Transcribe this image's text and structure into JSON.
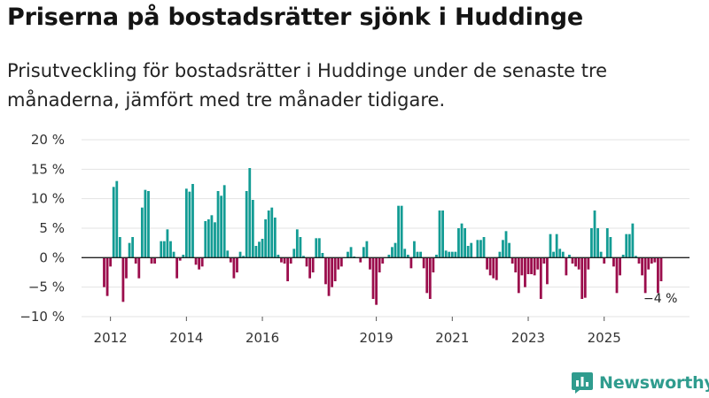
{
  "header": {
    "title": "Priserna på bostadsrätter sjönk i Huddinge",
    "subtitle": "Prisutveckling för bostadsrätter i Huddinge under de senaste tre månaderna, jämfört med tre månader tidigare."
  },
  "brand": {
    "name": "Newsworthy",
    "color": "#2f9c8e"
  },
  "colors": {
    "positive": "#139c94",
    "negative": "#9b0d4c",
    "grid": "#e3e3e3",
    "zero": "#222222"
  },
  "chart_data": {
    "type": "bar",
    "unit": "%",
    "ylim": [
      -10,
      20
    ],
    "yticks": [
      -10,
      -5,
      0,
      5,
      10,
      15,
      20
    ],
    "ytick_labels": [
      "−10 %",
      "−5 %",
      "0 %",
      "5 %",
      "10 %",
      "15 %",
      "20 %"
    ],
    "xticks": [
      2012,
      2014,
      2016,
      2019,
      2021,
      2023,
      2025
    ],
    "x_start": "2011-11",
    "x_end": "2025-09",
    "annotation": {
      "label": "−4 %",
      "value": -4
    },
    "values": [
      -5,
      -6.5,
      -1.5,
      12,
      13,
      3.5,
      -7.5,
      -3.5,
      2.5,
      3.5,
      -1,
      -3.5,
      8.5,
      11.5,
      11.3,
      -1,
      -1,
      0,
      2.8,
      2.8,
      4.8,
      2.8,
      1,
      -3.5,
      -0.5,
      0.5,
      11.7,
      11.2,
      12.5,
      -1.2,
      -2,
      -1.5,
      6.2,
      6.5,
      7.2,
      6,
      11.3,
      10.5,
      12.3,
      1.2,
      -0.8,
      -3.5,
      -2.5,
      1,
      0.3,
      11.3,
      15.2,
      9.8,
      2,
      2.7,
      3.2,
      6.5,
      8,
      8.5,
      6.8,
      0.5,
      -0.8,
      -1,
      -4,
      -1,
      1.5,
      4.8,
      3.5,
      0.3,
      -1.5,
      -3.5,
      -2.5,
      3.3,
      3.3,
      0.8,
      -4.5,
      -6.5,
      -5,
      -4,
      -2,
      -1.5,
      0,
      1,
      1.8,
      0.2,
      0,
      -0.8,
      1.8,
      2.8,
      -2,
      -7,
      -8,
      -2.5,
      -1,
      0,
      0.5,
      1.8,
      2.5,
      8.8,
      8.8,
      1.5,
      0.5,
      -1.8,
      2.8,
      1,
      1,
      -1.8,
      -6,
      -7,
      -2.5,
      0.5,
      8,
      8,
      1.2,
      1,
      1,
      1,
      5,
      5.8,
      5,
      2,
      2.5,
      0,
      3,
      3,
      3.5,
      -2,
      -3,
      -3.5,
      -3.8,
      1,
      3,
      4.5,
      2.5,
      -1,
      -2.5,
      -6,
      -3,
      -5,
      -2.8,
      -2.8,
      -3,
      -2,
      -7,
      -1,
      -4.5,
      4,
      1,
      4,
      1.5,
      1,
      -3,
      0.5,
      -1,
      -1.5,
      -2,
      -7,
      -6.8,
      -2,
      5,
      8,
      5,
      1,
      -1,
      5,
      3.5,
      -1.5,
      -6,
      -3,
      0.5,
      4,
      4,
      5.8,
      0.3,
      -1,
      -3,
      -6,
      -2,
      -1,
      -0.8,
      -6,
      -4
    ]
  }
}
